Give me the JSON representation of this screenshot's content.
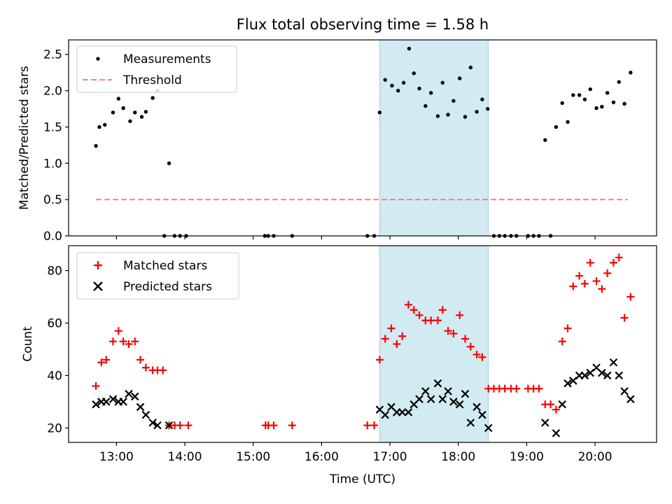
{
  "figure": {
    "title": "Flux total observing time = 1.58 h",
    "shade_color": "#add8e6",
    "colors": {
      "measurements": "#000000",
      "threshold": "#ff7f7f",
      "matched": "#ff0000",
      "predicted": "#000000"
    }
  },
  "chart_data": [
    {
      "type": "scatter",
      "panel": "top",
      "title": "Flux total observing time = 1.58 h",
      "ylabel": "Matched/Predicted stars",
      "xlim": [
        12.3,
        20.9
      ],
      "ylim": [
        0,
        2.7
      ],
      "yticks": [
        0.0,
        0.5,
        1.0,
        1.5,
        2.0,
        2.5
      ],
      "ytick_labels": [
        "0.0",
        "0.5",
        "1.0",
        "1.5",
        "2.0",
        "2.5"
      ],
      "shaded_interval": [
        16.85,
        18.44
      ],
      "legend": {
        "placement": "upper-left",
        "entries": [
          "Measurements",
          "Threshold"
        ]
      },
      "threshold": {
        "name": "Threshold",
        "y": 0.5,
        "x_range": [
          12.7,
          20.48
        ]
      },
      "series": [
        {
          "name": "Measurements",
          "marker": "dot",
          "points": [
            [
              12.7,
              1.24
            ],
            [
              12.75,
              1.5
            ],
            [
              12.83,
              1.53
            ],
            [
              12.95,
              1.7
            ],
            [
              13.03,
              1.89
            ],
            [
              13.1,
              1.76
            ],
            [
              13.2,
              1.58
            ],
            [
              13.27,
              1.7
            ],
            [
              13.37,
              1.64
            ],
            [
              13.43,
              1.71
            ],
            [
              13.53,
              1.9
            ],
            [
              13.6,
              2.0
            ],
            [
              13.77,
              1.0
            ],
            [
              13.7,
              0.0
            ],
            [
              13.85,
              0.0
            ],
            [
              13.93,
              0.0
            ],
            [
              14.02,
              0.0
            ],
            [
              15.17,
              0.0
            ],
            [
              15.22,
              0.0
            ],
            [
              15.3,
              0.0
            ],
            [
              15.57,
              0.0
            ],
            [
              16.67,
              0.0
            ],
            [
              16.77,
              0.0
            ],
            [
              16.85,
              1.7
            ],
            [
              16.93,
              2.15
            ],
            [
              17.03,
              2.07
            ],
            [
              17.12,
              2.0
            ],
            [
              17.2,
              2.11
            ],
            [
              17.28,
              2.58
            ],
            [
              17.35,
              2.24
            ],
            [
              17.43,
              2.03
            ],
            [
              17.52,
              1.79
            ],
            [
              17.6,
              1.97
            ],
            [
              17.7,
              1.65
            ],
            [
              17.77,
              2.11
            ],
            [
              17.85,
              1.67
            ],
            [
              17.93,
              1.86
            ],
            [
              18.02,
              2.17
            ],
            [
              18.1,
              1.64
            ],
            [
              18.18,
              2.32
            ],
            [
              18.27,
              1.71
            ],
            [
              18.35,
              1.88
            ],
            [
              18.43,
              1.75
            ],
            [
              18.52,
              0.0
            ],
            [
              18.6,
              0.0
            ],
            [
              18.68,
              0.0
            ],
            [
              18.77,
              0.0
            ],
            [
              18.85,
              0.0
            ],
            [
              19.02,
              0.0
            ],
            [
              19.1,
              0.0
            ],
            [
              19.18,
              0.0
            ],
            [
              19.35,
              0.0
            ],
            [
              19.27,
              1.32
            ],
            [
              19.43,
              1.5
            ],
            [
              19.52,
              1.83
            ],
            [
              19.6,
              1.57
            ],
            [
              19.68,
              1.94
            ],
            [
              19.77,
              1.94
            ],
            [
              19.85,
              1.88
            ],
            [
              19.93,
              2.02
            ],
            [
              20.02,
              1.76
            ],
            [
              20.1,
              1.78
            ],
            [
              20.18,
              1.97
            ],
            [
              20.27,
              1.84
            ],
            [
              20.35,
              2.12
            ],
            [
              20.43,
              1.82
            ],
            [
              20.52,
              2.25
            ]
          ]
        }
      ]
    },
    {
      "type": "scatter",
      "panel": "bottom",
      "xlabel": "Time (UTC)",
      "ylabel": "Count",
      "xlim": [
        12.3,
        20.9
      ],
      "ylim": [
        14.5,
        89.5
      ],
      "xticks": [
        13,
        14,
        15,
        16,
        17,
        18,
        19,
        20
      ],
      "xtick_labels": [
        "13:00",
        "14:00",
        "15:00",
        "16:00",
        "17:00",
        "18:00",
        "19:00",
        "20:00"
      ],
      "yticks": [
        20,
        40,
        60,
        80
      ],
      "ytick_labels": [
        "20",
        "40",
        "60",
        "80"
      ],
      "shaded_interval": [
        16.85,
        18.44
      ],
      "legend": {
        "placement": "upper-left",
        "entries": [
          "Matched stars",
          "Predicted stars"
        ]
      },
      "series": [
        {
          "name": "Matched stars",
          "marker": "plus",
          "points": [
            [
              12.7,
              36
            ],
            [
              12.78,
              45
            ],
            [
              12.85,
              46
            ],
            [
              12.95,
              53
            ],
            [
              13.03,
              57
            ],
            [
              13.1,
              53
            ],
            [
              13.18,
              52
            ],
            [
              13.27,
              53
            ],
            [
              13.35,
              46
            ],
            [
              13.43,
              43
            ],
            [
              13.53,
              42
            ],
            [
              13.6,
              42
            ],
            [
              13.68,
              42
            ],
            [
              13.77,
              21
            ],
            [
              13.85,
              21
            ],
            [
              13.93,
              21
            ],
            [
              14.05,
              21
            ],
            [
              15.18,
              21
            ],
            [
              15.22,
              21
            ],
            [
              15.3,
              21
            ],
            [
              15.57,
              21
            ],
            [
              16.67,
              21
            ],
            [
              16.77,
              21
            ],
            [
              16.85,
              46
            ],
            [
              16.93,
              54
            ],
            [
              17.02,
              58
            ],
            [
              17.1,
              52
            ],
            [
              17.18,
              55
            ],
            [
              17.27,
              67
            ],
            [
              17.35,
              65
            ],
            [
              17.43,
              63
            ],
            [
              17.52,
              61
            ],
            [
              17.6,
              61
            ],
            [
              17.7,
              61
            ],
            [
              17.77,
              65
            ],
            [
              17.85,
              57
            ],
            [
              17.93,
              56
            ],
            [
              18.02,
              63
            ],
            [
              18.1,
              54
            ],
            [
              18.18,
              51
            ],
            [
              18.27,
              48
            ],
            [
              18.35,
              47
            ],
            [
              18.44,
              35
            ],
            [
              18.52,
              35
            ],
            [
              18.6,
              35
            ],
            [
              18.68,
              35
            ],
            [
              18.77,
              35
            ],
            [
              18.85,
              35
            ],
            [
              19.02,
              35
            ],
            [
              19.1,
              35
            ],
            [
              19.18,
              35
            ],
            [
              19.27,
              29
            ],
            [
              19.35,
              29
            ],
            [
              19.43,
              27
            ],
            [
              19.52,
              53
            ],
            [
              19.6,
              58
            ],
            [
              19.68,
              74
            ],
            [
              19.77,
              78
            ],
            [
              19.85,
              75
            ],
            [
              19.93,
              83
            ],
            [
              20.02,
              76
            ],
            [
              20.1,
              73
            ],
            [
              20.18,
              79
            ],
            [
              20.27,
              83
            ],
            [
              20.35,
              85
            ],
            [
              20.43,
              62
            ],
            [
              20.52,
              70
            ]
          ]
        },
        {
          "name": "Predicted stars",
          "marker": "cross",
          "points": [
            [
              12.7,
              29
            ],
            [
              12.78,
              30
            ],
            [
              12.85,
              30
            ],
            [
              12.95,
              31
            ],
            [
              13.03,
              30
            ],
            [
              13.1,
              30
            ],
            [
              13.18,
              33
            ],
            [
              13.27,
              32
            ],
            [
              13.35,
              28
            ],
            [
              13.43,
              25
            ],
            [
              13.53,
              22
            ],
            [
              13.6,
              21
            ],
            [
              13.77,
              21
            ],
            [
              16.85,
              27
            ],
            [
              16.93,
              25
            ],
            [
              17.02,
              28
            ],
            [
              17.1,
              26
            ],
            [
              17.18,
              26
            ],
            [
              17.27,
              26
            ],
            [
              17.35,
              29
            ],
            [
              17.43,
              31
            ],
            [
              17.52,
              34
            ],
            [
              17.6,
              31
            ],
            [
              17.7,
              37
            ],
            [
              17.77,
              31
            ],
            [
              17.85,
              34
            ],
            [
              17.93,
              30
            ],
            [
              18.02,
              29
            ],
            [
              18.1,
              33
            ],
            [
              18.18,
              22
            ],
            [
              18.27,
              28
            ],
            [
              18.35,
              25
            ],
            [
              18.44,
              20
            ],
            [
              19.27,
              22
            ],
            [
              19.43,
              18
            ],
            [
              19.52,
              29
            ],
            [
              19.6,
              37
            ],
            [
              19.68,
              38
            ],
            [
              19.77,
              40
            ],
            [
              19.85,
              40
            ],
            [
              19.93,
              41
            ],
            [
              20.02,
              43
            ],
            [
              20.1,
              41
            ],
            [
              20.18,
              40
            ],
            [
              20.27,
              45
            ],
            [
              20.35,
              40
            ],
            [
              20.43,
              34
            ],
            [
              20.52,
              31
            ]
          ]
        }
      ]
    }
  ]
}
